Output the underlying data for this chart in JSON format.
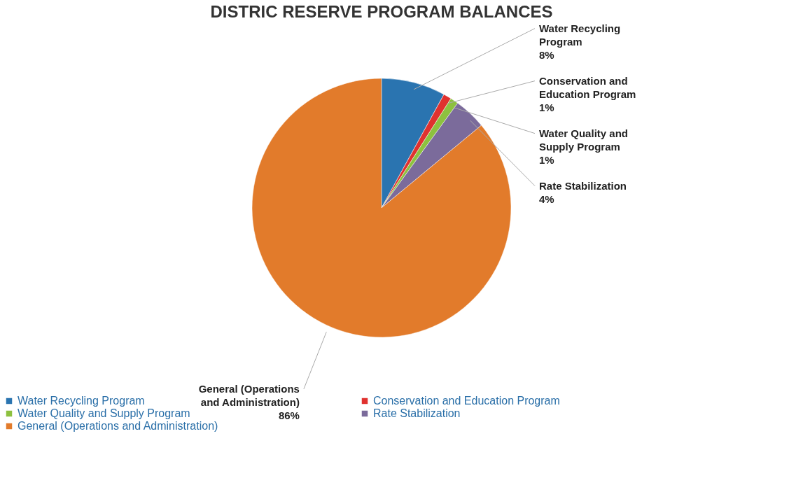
{
  "chart_data": {
    "type": "pie",
    "title": "DISTRIC RESERVE PROGRAM BALANCES",
    "categories": [
      "Water Recycling Program",
      "Conservation and Education Program",
      "Water Quality and Supply Program",
      "Rate Stabilization",
      "General (Operations and Administration)"
    ],
    "values": [
      8,
      1,
      1,
      4,
      86
    ],
    "colors": [
      "#2a74b0",
      "#e0312f",
      "#8dc13f",
      "#7b6b9b",
      "#e27b2b"
    ],
    "value_labels": [
      "8%",
      "1%",
      "1%",
      "4%",
      "86%"
    ],
    "legend": "bottom"
  }
}
